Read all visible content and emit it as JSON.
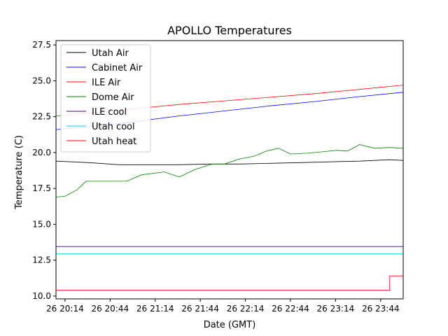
{
  "chart_data": {
    "type": "line",
    "title": "APOLLO Temperatures",
    "xlabel": "Date (GMT)",
    "ylabel": "Temperature (C)",
    "x_unit": "time",
    "xlim": [
      "26 20:08",
      "26 23:59"
    ],
    "ylim": [
      9.8,
      27.8
    ],
    "grid": false,
    "legend_position": "upper-left",
    "x_ticks": [
      {
        "value": "26 20:14",
        "label": "26 20:14"
      },
      {
        "value": "26 20:44",
        "label": "26 20:44"
      },
      {
        "value": "26 21:14",
        "label": "26 21:14"
      },
      {
        "value": "26 21:44",
        "label": "26 21:44"
      },
      {
        "value": "26 22:14",
        "label": "26 22:14"
      },
      {
        "value": "26 22:44",
        "label": "26 22:44"
      },
      {
        "value": "26 23:14",
        "label": "26 23:14"
      },
      {
        "value": "26 23:44",
        "label": "26 23:44"
      }
    ],
    "y_ticks": [
      {
        "value": 10.0,
        "label": "10.0"
      },
      {
        "value": 12.5,
        "label": "12.5"
      },
      {
        "value": 15.0,
        "label": "15.0"
      },
      {
        "value": 17.5,
        "label": "17.5"
      },
      {
        "value": 20.0,
        "label": "20.0"
      },
      {
        "value": 22.5,
        "label": "22.5"
      },
      {
        "value": 25.0,
        "label": "25.0"
      },
      {
        "value": 27.5,
        "label": "27.5"
      }
    ],
    "series": [
      {
        "name": "Utah Air",
        "color": "#000000",
        "x": [
          "26 20:08",
          "26 20:30",
          "26 20:50",
          "26 21:10",
          "26 21:30",
          "26 21:50",
          "26 22:10",
          "26 22:30",
          "26 22:50",
          "26 23:10",
          "26 23:30",
          "26 23:50",
          "26 23:59"
        ],
        "y": [
          19.4,
          19.3,
          19.15,
          19.15,
          19.15,
          19.2,
          19.2,
          19.25,
          19.3,
          19.35,
          19.4,
          19.5,
          19.45
        ]
      },
      {
        "name": "Cabinet Air",
        "color": "#0000ff",
        "x": [
          "26 20:08",
          "26 20:30",
          "26 21:00",
          "26 21:30",
          "26 22:00",
          "26 22:30",
          "26 23:00",
          "26 23:30",
          "26 23:59"
        ],
        "y": [
          21.6,
          21.8,
          22.15,
          22.55,
          22.9,
          23.25,
          23.55,
          23.9,
          24.2
        ]
      },
      {
        "name": "ILE Air",
        "color": "#ff0000",
        "x": [
          "26 20:08",
          "26 20:30",
          "26 21:00",
          "26 21:30",
          "26 22:00",
          "26 22:30",
          "26 23:00",
          "26 23:30",
          "26 23:59"
        ],
        "y": [
          22.55,
          22.75,
          23.05,
          23.35,
          23.6,
          23.85,
          24.1,
          24.4,
          24.7
        ]
      },
      {
        "name": "Dome Air",
        "color": "#008000",
        "x": [
          "26 20:08",
          "26 20:14",
          "26 20:22",
          "26 20:28",
          "26 20:40",
          "26 20:55",
          "26 21:05",
          "26 21:20",
          "26 21:30",
          "26 21:40",
          "26 21:52",
          "26 22:00",
          "26 22:10",
          "26 22:20",
          "26 22:28",
          "26 22:36",
          "26 22:44",
          "26 22:55",
          "26 23:05",
          "26 23:15",
          "26 23:22",
          "26 23:30",
          "26 23:40",
          "26 23:50",
          "26 23:59"
        ],
        "y": [
          16.9,
          16.95,
          17.4,
          18.0,
          18.0,
          18.0,
          18.45,
          18.65,
          18.3,
          18.8,
          19.2,
          19.2,
          19.55,
          19.75,
          20.1,
          20.3,
          19.9,
          19.95,
          20.05,
          20.15,
          20.1,
          20.55,
          20.3,
          20.35,
          20.3
        ]
      },
      {
        "name": "ILE cool",
        "color": "#2f0066",
        "x": [
          "26 20:08",
          "26 23:59"
        ],
        "y": [
          13.45,
          13.45
        ]
      },
      {
        "name": "Utah cool",
        "color": "#00ccff",
        "x": [
          "26 20:08",
          "26 23:59"
        ],
        "y": [
          12.95,
          12.95
        ]
      },
      {
        "name": "Utah heat",
        "color": "#ff0000",
        "x": [
          "26 20:08",
          "26 23:50",
          "26 23:50",
          "26 23:59"
        ],
        "y": [
          10.4,
          10.4,
          11.4,
          11.4
        ]
      }
    ]
  }
}
